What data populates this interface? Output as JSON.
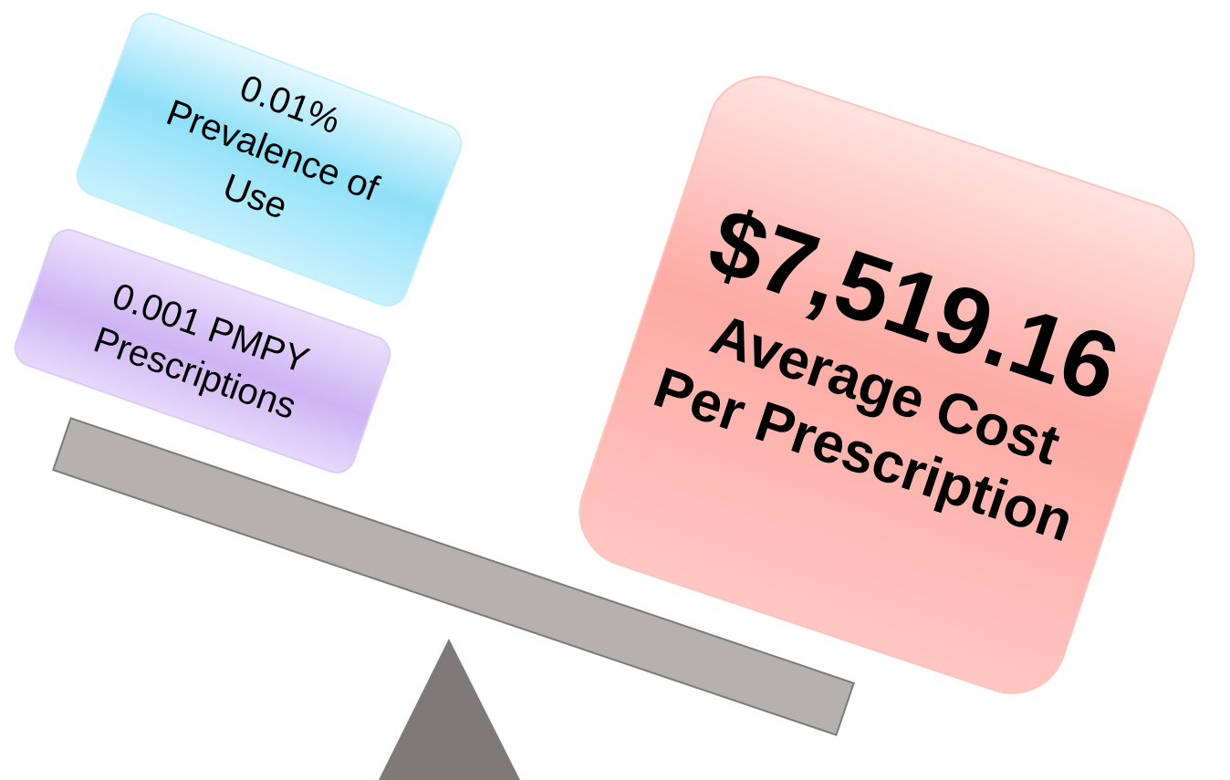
{
  "boxes": [
    {
      "lines": [
        "0.01%",
        "Prevalence of",
        "Use"
      ]
    },
    {
      "lines": [
        "0.001 PMPY",
        "Prescriptions"
      ]
    },
    {
      "lines": [
        "$7,519.16",
        "Average Cost",
        "Per Prescription"
      ]
    }
  ]
}
